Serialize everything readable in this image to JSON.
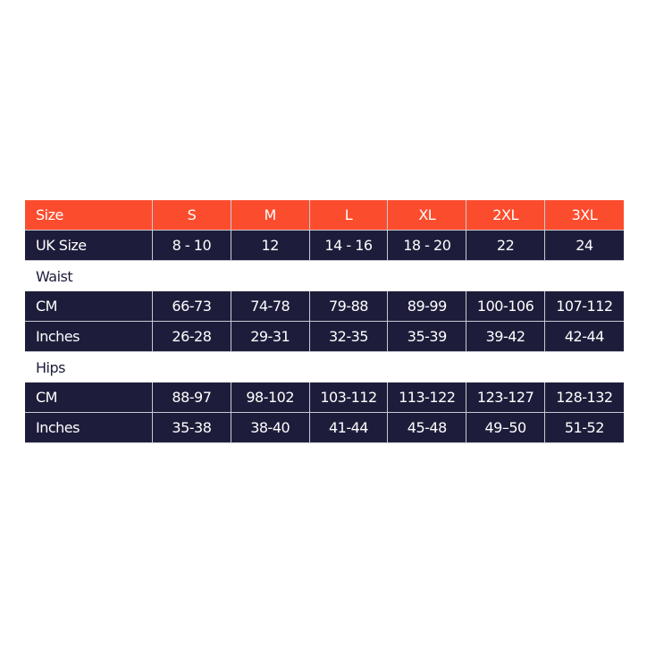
{
  "header": {
    "label": "Size",
    "sizes": [
      "S",
      "M",
      "L",
      "XL",
      "2XL",
      "3XL"
    ]
  },
  "uk_size": {
    "label": "UK Size",
    "values": [
      "8 - 10",
      "12",
      "14 - 16",
      "18 - 20",
      "22",
      "24"
    ]
  },
  "waist": {
    "title": "Waist",
    "cm": {
      "label": "CM",
      "values": [
        "66-73",
        "74-78",
        "79-88",
        "89-99",
        "100-106",
        "107-112"
      ]
    },
    "inches": {
      "label": "Inches",
      "values": [
        "26-28",
        "29-31",
        "32-35",
        "35-39",
        "39-42",
        "42-44"
      ]
    }
  },
  "hips": {
    "title": "Hips",
    "cm": {
      "label": "CM",
      "values": [
        "88-97",
        "98-102",
        "103-112",
        "113-122",
        "123-127",
        "128-132"
      ]
    },
    "inches": {
      "label": "Inches",
      "values": [
        "35-38",
        "38-40",
        "41-44",
        "45-48",
        "49–50",
        "51-52"
      ]
    }
  },
  "colors": {
    "header": "#fb4d2e",
    "row": "#1d1d3b",
    "border": "#c9c9d3"
  }
}
